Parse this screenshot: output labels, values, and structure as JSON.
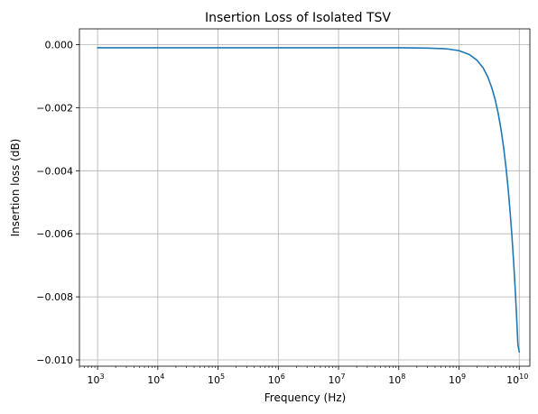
{
  "chart_data": {
    "type": "line",
    "title": "Insertion Loss of Isolated TSV",
    "xlabel": "Frequency (Hz)",
    "ylabel": "Insertion loss (dB)",
    "x_scale": "log",
    "xlim": [
      500,
      15000000000
    ],
    "ylim": [
      -0.0102,
      0.0005
    ],
    "grid": true,
    "x_ticks": [
      1000,
      10000,
      100000,
      1000000,
      10000000,
      100000000,
      1000000000,
      10000000000
    ],
    "x_tick_labels": [
      {
        "base": "10",
        "exp": "3"
      },
      {
        "base": "10",
        "exp": "4"
      },
      {
        "base": "10",
        "exp": "5"
      },
      {
        "base": "10",
        "exp": "6"
      },
      {
        "base": "10",
        "exp": "7"
      },
      {
        "base": "10",
        "exp": "8"
      },
      {
        "base": "10",
        "exp": "9"
      },
      {
        "base": "10",
        "exp": "10"
      }
    ],
    "y_ticks": [
      0.0,
      -0.002,
      -0.004,
      -0.006,
      -0.008,
      -0.01
    ],
    "y_tick_labels": [
      "0.000",
      "−0.002",
      "−0.004",
      "−0.006",
      "−0.008",
      "−0.010"
    ],
    "series": [
      {
        "color": "#1f77b4",
        "x": [
          1000,
          10000,
          100000,
          1000000,
          10000000,
          100000000,
          300000000,
          600000000,
          1000000000,
          1500000000,
          2000000000,
          2500000000,
          3000000000,
          3500000000,
          4000000000,
          4500000000,
          5000000000,
          5500000000,
          6000000000,
          6500000000,
          7000000000,
          7500000000,
          8000000000,
          8500000000,
          9000000000,
          9500000000,
          10000000000
        ],
        "y": [
          -0.0001,
          -0.0001,
          -0.0001,
          -0.0001,
          -0.0001,
          -0.0001,
          -0.00011,
          -0.00013,
          -0.00019,
          -0.00032,
          -0.0005,
          -0.00073,
          -0.00102,
          -0.00137,
          -0.00176,
          -0.00221,
          -0.00271,
          -0.00326,
          -0.00387,
          -0.00452,
          -0.00523,
          -0.00598,
          -0.00679,
          -0.00765,
          -0.00856,
          -0.00952,
          -0.00975
        ]
      }
    ]
  }
}
